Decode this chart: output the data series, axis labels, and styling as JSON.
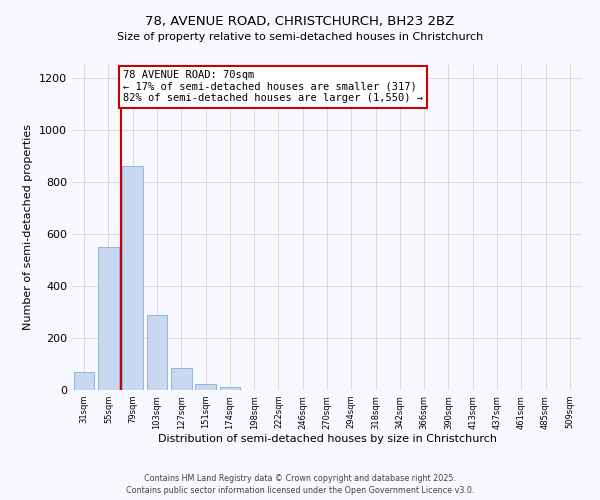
{
  "title_line1": "78, AVENUE ROAD, CHRISTCHURCH, BH23 2BZ",
  "title_line2": "Size of property relative to semi-detached houses in Christchurch",
  "xlabel": "Distribution of semi-detached houses by size in Christchurch",
  "ylabel": "Number of semi-detached properties",
  "categories": [
    "31sqm",
    "55sqm",
    "79sqm",
    "103sqm",
    "127sqm",
    "151sqm",
    "174sqm",
    "198sqm",
    "222sqm",
    "246sqm",
    "270sqm",
    "294sqm",
    "318sqm",
    "342sqm",
    "366sqm",
    "390sqm",
    "413sqm",
    "437sqm",
    "461sqm",
    "485sqm",
    "509sqm"
  ],
  "values": [
    70,
    550,
    860,
    290,
    85,
    25,
    10,
    0,
    0,
    0,
    0,
    0,
    0,
    0,
    0,
    0,
    0,
    0,
    0,
    0,
    0
  ],
  "bar_color": "#c8d8f0",
  "bar_edge_color": "#8aadce",
  "red_line_x": 1.5,
  "annotation_title": "78 AVENUE ROAD: 70sqm",
  "annotation_line2": "← 17% of semi-detached houses are smaller (317)",
  "annotation_line3": "82% of semi-detached houses are larger (1,550) →",
  "annotation_box_color": "#ffffff",
  "annotation_box_edge": "#cc0000",
  "red_line_color": "#cc0000",
  "ylim": [
    0,
    1250
  ],
  "yticks": [
    0,
    200,
    400,
    600,
    800,
    1000,
    1200
  ],
  "footer_line1": "Contains HM Land Registry data © Crown copyright and database right 2025.",
  "footer_line2": "Contains public sector information licensed under the Open Government Licence v3.0.",
  "bg_color": "#f8f8ff",
  "grid_color": "#d8d8e8"
}
